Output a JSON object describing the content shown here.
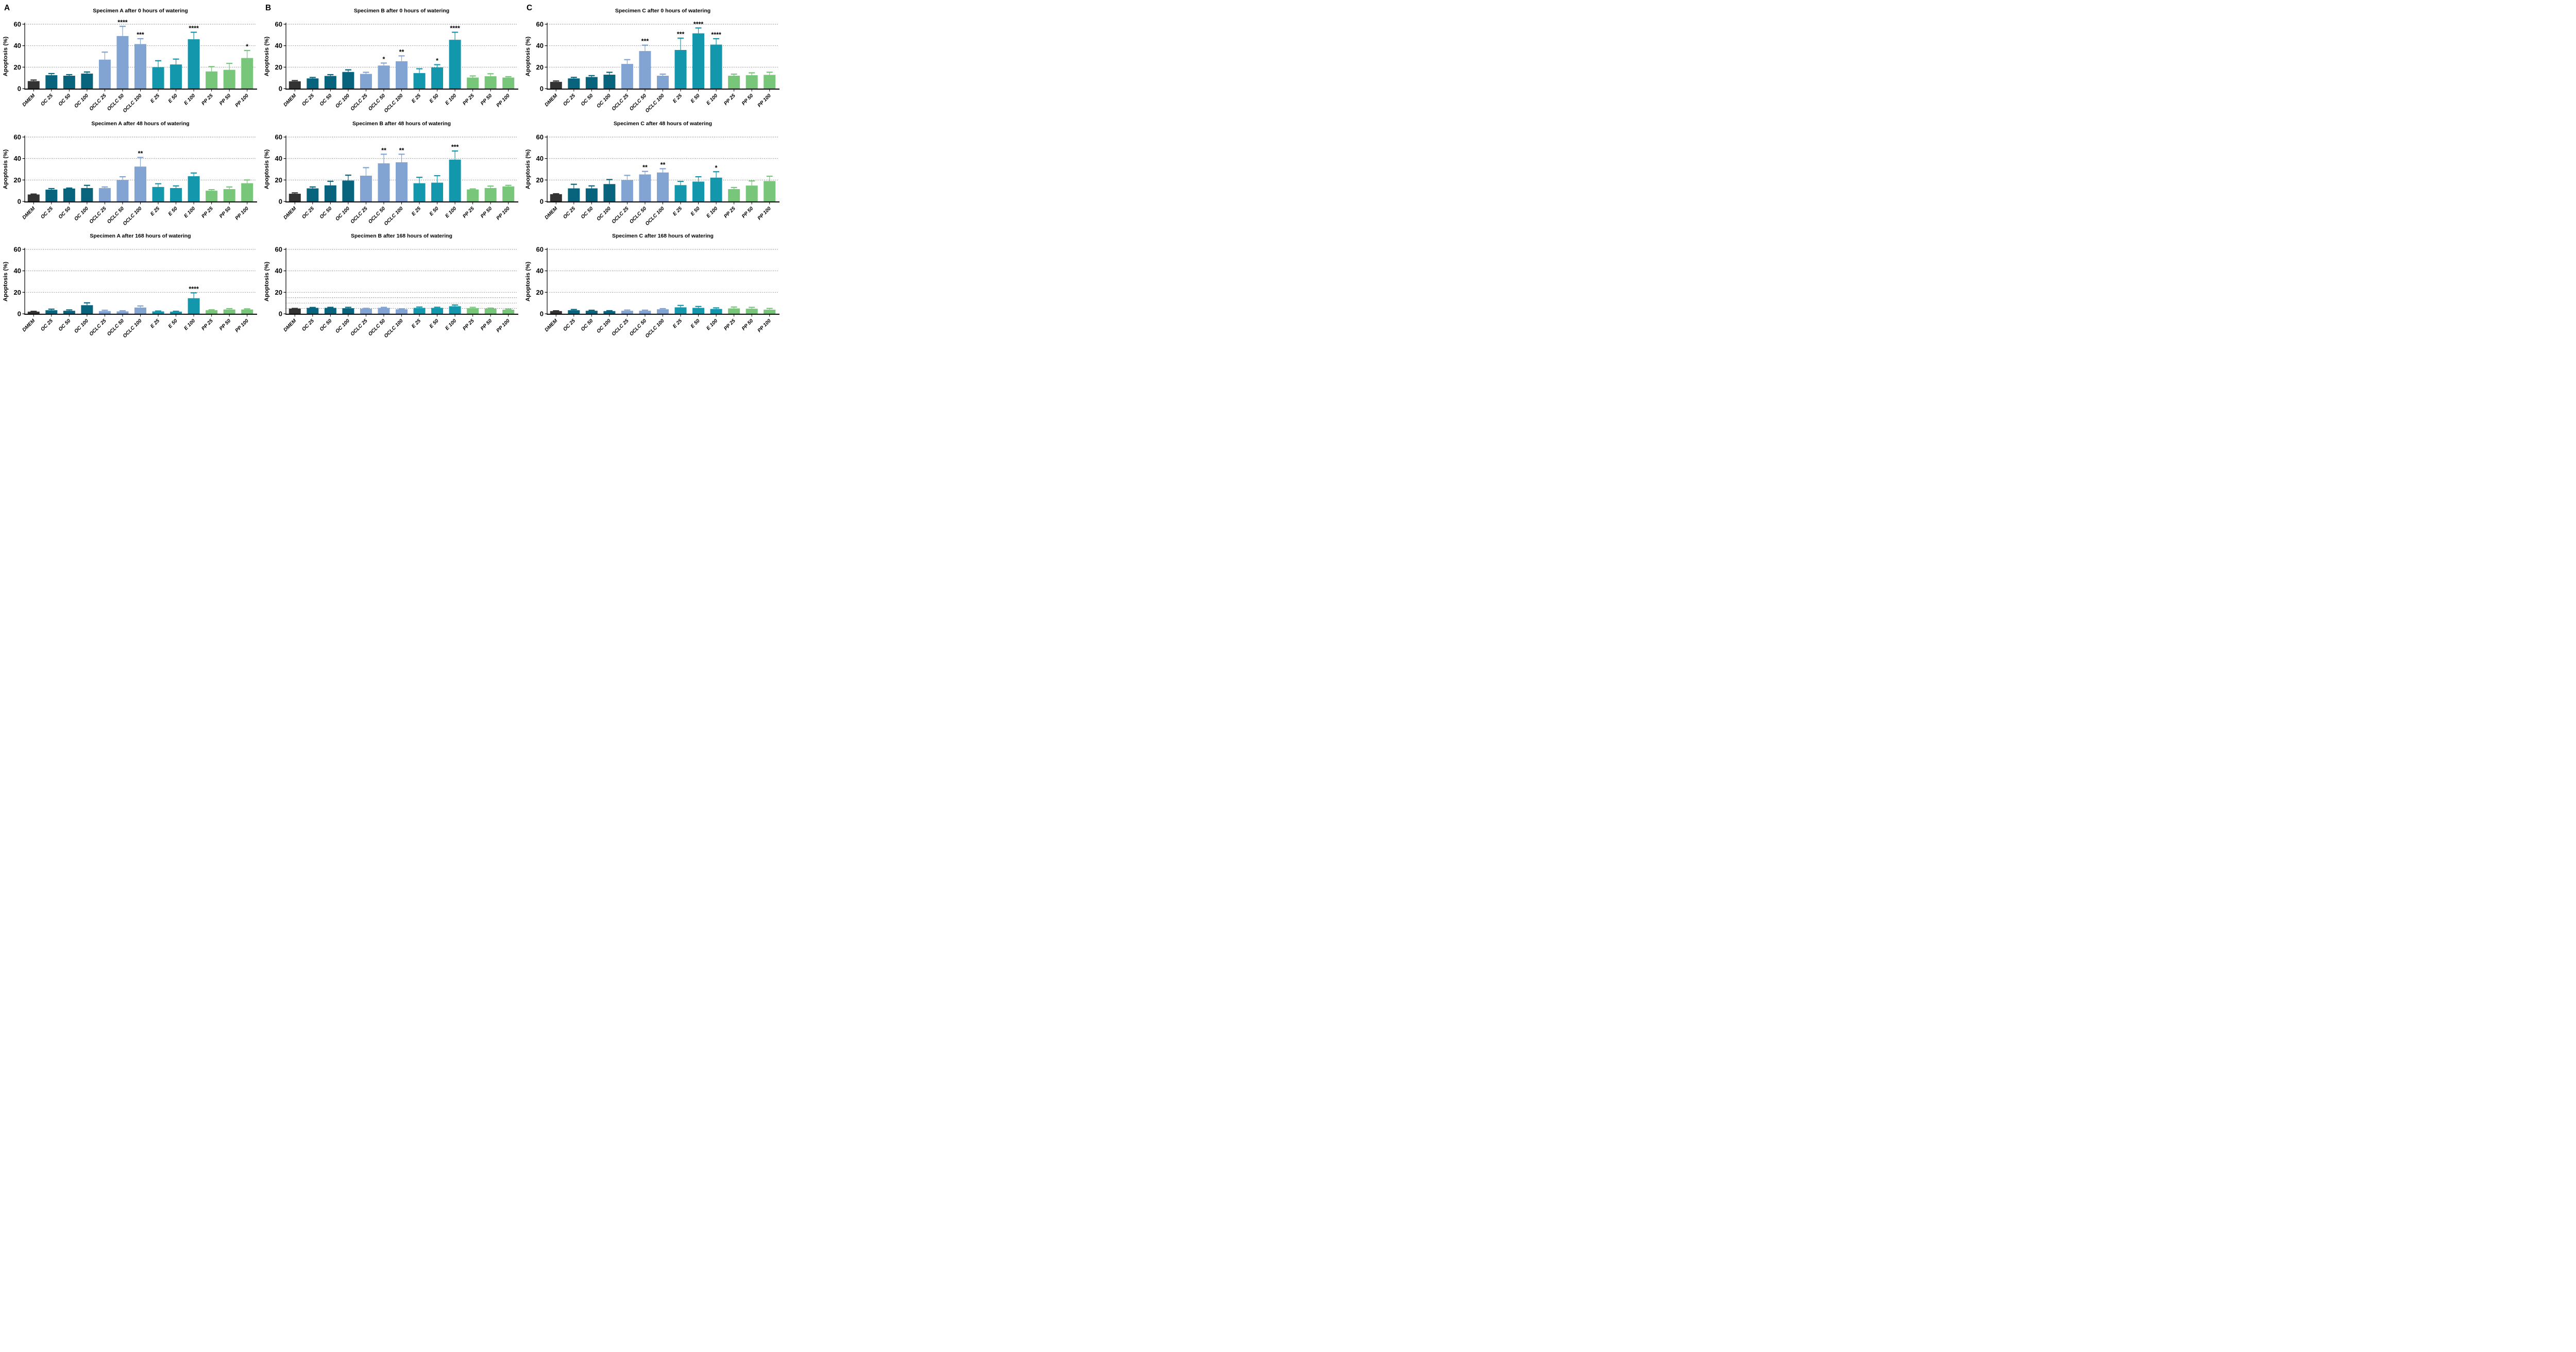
{
  "figure": {
    "background": "#ffffff",
    "ylabel": "Apoptosis (%)",
    "panel_letters": [
      "A",
      "B",
      "C"
    ],
    "categories": [
      "DMEM",
      "OC 25",
      "OC 50",
      "OC 100",
      "OCLC 25",
      "OCLC 50",
      "OCLC 100",
      "E 25",
      "E 50",
      "E 100",
      "PP 25",
      "PP 50",
      "PP 100"
    ],
    "bar_groups": [
      "dmem",
      "oc",
      "oc",
      "oc",
      "oclc",
      "oclc",
      "oclc",
      "e",
      "e",
      "e",
      "pp",
      "pp",
      "pp"
    ],
    "colors": {
      "dmem": "#333333",
      "oc": "#07647c",
      "oclc": "#82a4d2",
      "e": "#1297ac",
      "pp": "#77c679"
    },
    "axis_color": "#000000",
    "grid_color": "#333333",
    "sig_color": "#000000"
  },
  "chart_data": [
    {
      "id": "specimen-a-0h",
      "letter": "A",
      "type": "bar",
      "title": "Specimen A after 0 hours of watering",
      "xlabel": "",
      "ylabel": "Apoptosis (%)",
      "ylim": [
        0,
        60
      ],
      "yticks": [
        0,
        20,
        40,
        60
      ],
      "gridlines": [
        20,
        40,
        60
      ],
      "grid_style": "dotted",
      "legend": "none",
      "categories": [
        "DMEM",
        "OC 25",
        "OC 50",
        "OC 100",
        "OCLC 25",
        "OCLC 50",
        "OCLC 100",
        "E 25",
        "E 50",
        "E 100",
        "PP 25",
        "PP 50",
        "PP 100"
      ],
      "values": [
        7,
        12.5,
        12,
        14,
        27,
        49,
        41.5,
        20,
        22.5,
        46,
        16,
        17.5,
        28.5
      ],
      "errors": [
        1,
        1.5,
        1,
        1.5,
        7,
        9,
        5,
        6,
        5,
        6.5,
        4.5,
        6,
        7
      ],
      "significance": [
        "",
        "",
        "",
        "",
        "",
        "****",
        "***",
        "",
        "",
        "****",
        "",
        "",
        "*"
      ]
    },
    {
      "id": "specimen-b-0h",
      "letter": "B",
      "type": "bar",
      "title": "Specimen B after 0 hours of watering",
      "xlabel": "",
      "ylabel": "Apoptosis (%)",
      "ylim": [
        0,
        60
      ],
      "yticks": [
        0,
        20,
        40,
        60
      ],
      "gridlines": [
        20,
        40,
        60
      ],
      "grid_style": "dotted",
      "legend": "none",
      "categories": [
        "DMEM",
        "OC 25",
        "OC 50",
        "OC 100",
        "OCLC 25",
        "OCLC 50",
        "OCLC 100",
        "E 25",
        "E 50",
        "E 100",
        "PP 25",
        "PP 50",
        "PP 100"
      ],
      "values": [
        6.8,
        9.5,
        11.8,
        15.5,
        13.7,
        21.5,
        25.5,
        14.5,
        19.8,
        45.5,
        10.3,
        11.5,
        10.3
      ],
      "errors": [
        0.7,
        0.9,
        1.2,
        2,
        1.5,
        2.3,
        5,
        4,
        2.5,
        7,
        1.5,
        2.3,
        0.8
      ],
      "significance": [
        "",
        "",
        "",
        "",
        "",
        "*",
        "**",
        "",
        "*",
        "****",
        "",
        "",
        ""
      ]
    },
    {
      "id": "specimen-c-0h",
      "letter": "C",
      "type": "bar",
      "title": "Specimen C after 0 hours of watering",
      "xlabel": "",
      "ylabel": "Apoptosis (%)",
      "ylim": [
        0,
        60
      ],
      "yticks": [
        0,
        20,
        40,
        60
      ],
      "gridlines": [
        20,
        40,
        60
      ],
      "grid_style": "dotted",
      "legend": "none",
      "categories": [
        "DMEM",
        "OC 25",
        "OC 50",
        "OC 100",
        "OCLC 25",
        "OCLC 50",
        "OCLC 100",
        "E 25",
        "E 50",
        "E 100",
        "PP 25",
        "PP 50",
        "PP 100"
      ],
      "values": [
        6.3,
        9.5,
        10.8,
        13,
        23,
        35,
        12,
        36,
        51.5,
        41,
        12,
        12.5,
        12.8
      ],
      "errors": [
        0.8,
        1,
        1.3,
        2.2,
        4,
        5.5,
        1.5,
        11,
        5,
        5.5,
        1.5,
        2.2,
        2.5
      ],
      "significance": [
        "",
        "",
        "",
        "",
        "",
        "***",
        "",
        "***",
        "****",
        "****",
        "",
        "",
        ""
      ]
    },
    {
      "id": "specimen-a-48h",
      "letter": "",
      "type": "bar",
      "title": "Specimen A after 48 hours of watering",
      "xlabel": "",
      "ylabel": "Apoptosis (%)",
      "ylim": [
        0,
        60
      ],
      "yticks": [
        0,
        20,
        40,
        60
      ],
      "gridlines": [
        20,
        40,
        60
      ],
      "grid_style": "dotted",
      "legend": "none",
      "categories": [
        "DMEM",
        "OC 25",
        "OC 50",
        "OC 100",
        "OCLC 25",
        "OCLC 50",
        "OCLC 100",
        "E 25",
        "E 50",
        "E 100",
        "PP 25",
        "PP 50",
        "PP 100"
      ],
      "values": [
        6.5,
        11,
        12,
        12.5,
        12.5,
        20,
        32.5,
        13.5,
        12.5,
        23.5,
        10,
        11.5,
        17
      ],
      "errors": [
        0.4,
        1,
        0.5,
        2.5,
        1,
        3,
        8.5,
        3,
        2,
        3,
        1,
        2,
        3
      ],
      "significance": [
        "",
        "",
        "",
        "",
        "",
        "",
        "**",
        "",
        "",
        "",
        "",
        "",
        ""
      ]
    },
    {
      "id": "specimen-b-48h",
      "letter": "",
      "type": "bar",
      "title": "Specimen B after 48 hours of watering",
      "xlabel": "",
      "ylabel": "Apoptosis (%)",
      "ylim": [
        0,
        60
      ],
      "yticks": [
        0,
        20,
        40,
        60
      ],
      "gridlines": [
        20,
        40,
        60
      ],
      "grid_style": "dotted",
      "legend": "none",
      "categories": [
        "DMEM",
        "OC 25",
        "OC 50",
        "OC 100",
        "OCLC 25",
        "OCLC 50",
        "OCLC 100",
        "E 25",
        "E 50",
        "E 100",
        "PP 25",
        "PP 50",
        "PP 100"
      ],
      "values": [
        7.2,
        12.2,
        15,
        19.5,
        24,
        35.5,
        36.5,
        17,
        17.5,
        39,
        11.2,
        12.5,
        14
      ],
      "errors": [
        0.8,
        1.3,
        3.8,
        5,
        7.5,
        8.5,
        7.5,
        5.5,
        6.5,
        8,
        0.5,
        1.8,
        1
      ],
      "significance": [
        "",
        "",
        "",
        "",
        "",
        "**",
        "**",
        "",
        "",
        "***",
        "",
        "",
        ""
      ]
    },
    {
      "id": "specimen-c-48h",
      "letter": "",
      "type": "bar",
      "title": "Specimen C after 48 hours of watering",
      "xlabel": "",
      "ylabel": "Apoptosis (%)",
      "ylim": [
        0,
        60
      ],
      "yticks": [
        0,
        20,
        40,
        60
      ],
      "gridlines": [
        20,
        40,
        60
      ],
      "grid_style": "dotted",
      "legend": "none",
      "categories": [
        "DMEM",
        "OC 25",
        "OC 50",
        "OC 100",
        "OCLC 25",
        "OCLC 50",
        "OCLC 100",
        "E 25",
        "E 50",
        "E 100",
        "PP 25",
        "PP 50",
        "PP 100"
      ],
      "values": [
        6.8,
        12.2,
        12.2,
        16.2,
        20,
        25.2,
        27,
        15.2,
        18.5,
        22.2,
        11.5,
        14.8,
        19
      ],
      "errors": [
        0.4,
        3.8,
        2.3,
        4.2,
        4.3,
        2.8,
        3.5,
        3.5,
        4.5,
        5.5,
        1.5,
        4.3,
        4.5
      ],
      "significance": [
        "",
        "",
        "",
        "",
        "",
        "**",
        "**",
        "",
        "",
        "*",
        "",
        "",
        ""
      ]
    },
    {
      "id": "specimen-a-168h",
      "letter": "",
      "type": "bar",
      "title": "Specimen A after 168 hours of watering",
      "xlabel": "",
      "ylabel": "Apoptosis (%)",
      "ylim": [
        0,
        60
      ],
      "yticks": [
        0,
        20,
        40,
        60
      ],
      "gridlines": [
        20,
        40,
        60
      ],
      "grid_style": "dotted",
      "legend": "none",
      "categories": [
        "DMEM",
        "OC 25",
        "OC 50",
        "OC 100",
        "OCLC 25",
        "OCLC 50",
        "OCLC 100",
        "E 25",
        "E 50",
        "E 100",
        "PP 25",
        "PP 50",
        "PP 100"
      ],
      "values": [
        2,
        3.3,
        2.8,
        8,
        2.5,
        2.2,
        5.8,
        2.2,
        2,
        14.5,
        3.3,
        4,
        4
      ],
      "errors": [
        0.3,
        1,
        0.8,
        2.2,
        0.8,
        0.6,
        1.5,
        0.4,
        0.4,
        5,
        0.4,
        0.8,
        0.6
      ],
      "significance": [
        "",
        "",
        "",
        "",
        "",
        "",
        "",
        "",
        "",
        "****",
        "",
        "",
        ""
      ]
    },
    {
      "id": "specimen-b-168h",
      "letter": "",
      "type": "bar",
      "title": "Specimen B after 168 hours of watering",
      "xlabel": "",
      "ylabel": "Apoptosis (%)",
      "ylim": [
        0,
        60
      ],
      "yticks": [
        0,
        20,
        40,
        60
      ],
      "gridlines": [
        5,
        10,
        15,
        20,
        40,
        60
      ],
      "grid_style": "dotted",
      "legend": "none",
      "categories": [
        "DMEM",
        "OC 25",
        "OC 50",
        "OC 100",
        "OCLC 25",
        "OCLC 50",
        "OCLC 100",
        "E 25",
        "E 50",
        "E 100",
        "PP 25",
        "PP 50",
        "PP 100"
      ],
      "values": [
        4.8,
        5.5,
        5.5,
        5.2,
        4.7,
        5.5,
        4.2,
        5.5,
        5.5,
        7,
        5.2,
        4.8,
        3.8
      ],
      "errors": [
        0.2,
        0.4,
        0.5,
        0.8,
        0.4,
        0.5,
        0.4,
        0.8,
        0.6,
        1.2,
        0.8,
        0.5,
        0.6
      ],
      "significance": [
        "",
        "",
        "",
        "",
        "",
        "",
        "",
        "",
        "",
        "",
        "",
        "",
        ""
      ]
    },
    {
      "id": "specimen-c-168h",
      "letter": "",
      "type": "bar",
      "title": "Specimen C after 168 hours of watering",
      "xlabel": "",
      "ylabel": "Apoptosis (%)",
      "ylim": [
        0,
        60
      ],
      "yticks": [
        0,
        20,
        40,
        60
      ],
      "gridlines": [
        20,
        40,
        60
      ],
      "grid_style": "dotted",
      "legend": "none",
      "categories": [
        "DMEM",
        "OC 25",
        "OC 50",
        "OC 100",
        "OCLC 25",
        "OCLC 50",
        "OCLC 100",
        "E 25",
        "E 50",
        "E 100",
        "PP 25",
        "PP 50",
        "PP 100"
      ],
      "values": [
        2.5,
        3.3,
        2.8,
        2.5,
        2.8,
        2.8,
        4.2,
        6,
        5.5,
        4.5,
        5,
        4.7,
        3.8
      ],
      "errors": [
        0.3,
        0.7,
        0.5,
        0.4,
        0.7,
        0.6,
        0.6,
        1.8,
        1.3,
        1,
        1.3,
        1.3,
        1.2
      ],
      "significance": [
        "",
        "",
        "",
        "",
        "",
        "",
        "",
        "",
        "",
        "",
        "",
        "",
        ""
      ]
    }
  ]
}
